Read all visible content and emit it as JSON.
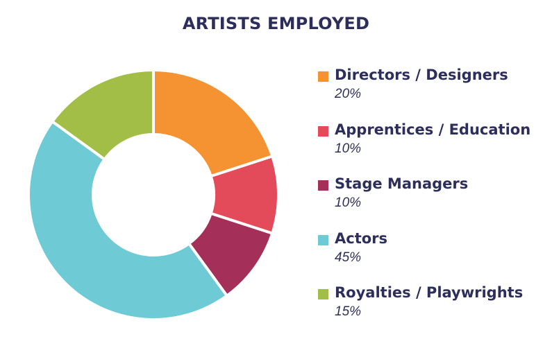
{
  "chart_data": {
    "type": "pie",
    "title": "ARTISTS EMPLOYED",
    "categories": [
      "Directors / Designers",
      "Apprentices / Education",
      "Stage Managers",
      "Actors",
      "Royalties / Playwrights"
    ],
    "values": [
      20,
      10,
      10,
      45,
      15
    ],
    "value_labels": [
      "20%",
      "10%",
      "10%",
      "45%",
      "15%"
    ],
    "colors": [
      "#f59332",
      "#e34b5a",
      "#a4305a",
      "#6ecbd6",
      "#a3be46"
    ],
    "donut": true,
    "legend_position": "right"
  }
}
